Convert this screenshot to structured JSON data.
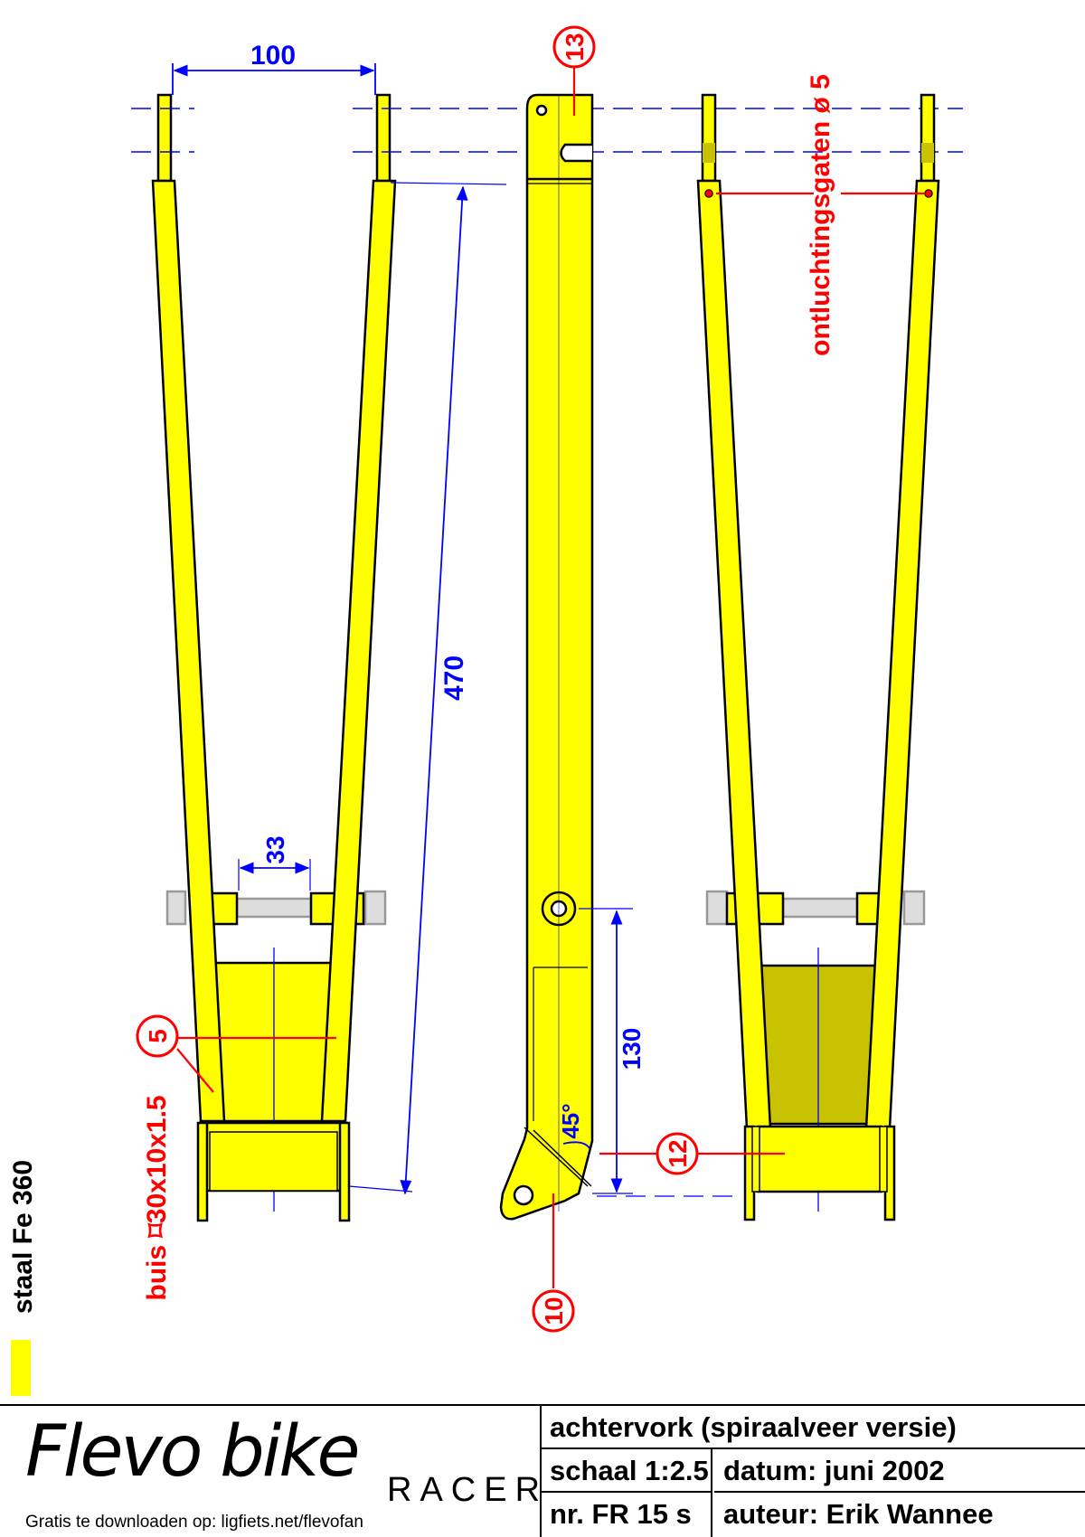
{
  "drawing": {
    "dimensions": {
      "top_width": "100",
      "length": "470",
      "bolt_gap": "33",
      "pivot_to_axle": "130",
      "angle": "45°"
    },
    "callouts": {
      "part_13": "13",
      "part_5": "5",
      "part_12": "12",
      "part_10": "10"
    },
    "notes": {
      "vent_holes": "ontluchtingsgaten ø 5",
      "tube": "buis ⌑30x10x1.5",
      "material": "staal Fe 360"
    },
    "colors": {
      "steel": "#ffff00",
      "dimension": "#0000ff",
      "callout": "#ff0000",
      "shadow": "#c9c200"
    }
  },
  "titleblock": {
    "brand": "Flevo bike",
    "subbrand": "RACER",
    "download": "Gratis te downloaden op: ligfiets.net/flevofan",
    "title": "achtervork (spiraalveer versie)",
    "scale": "schaal 1:2.5",
    "date": "datum: juni 2002",
    "number": "nr. FR  15 s",
    "author": "auteur: Erik Wannee"
  }
}
